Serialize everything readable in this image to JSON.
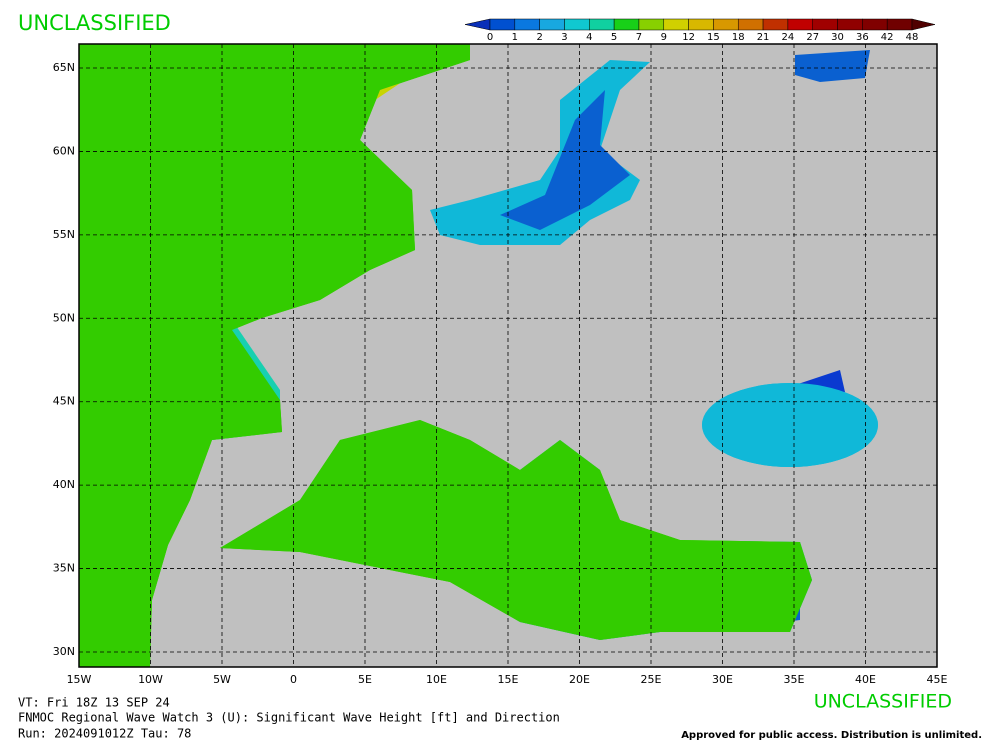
{
  "header": {
    "classification": "UNCLASSIFIED"
  },
  "colorbar": {
    "ticks": [
      0,
      1,
      2,
      3,
      4,
      5,
      7,
      9,
      12,
      15,
      18,
      21,
      24,
      27,
      30,
      36,
      42,
      48
    ],
    "colors": [
      "#0a2fb8",
      "#0050d0",
      "#0a78e0",
      "#18a8e0",
      "#10c8d0",
      "#10d0a0",
      "#18d018",
      "#88d000",
      "#d0d000",
      "#d8b800",
      "#d89800",
      "#d07000",
      "#c03000",
      "#c00000",
      "#a00000",
      "#900000",
      "#800000",
      "#700000",
      "#500000"
    ]
  },
  "map": {
    "lat_labels": [
      "65N",
      "60N",
      "55N",
      "50N",
      "45N",
      "40N",
      "35N",
      "30N"
    ],
    "lon_labels": [
      "15W",
      "10W",
      "5W",
      "0",
      "5E",
      "10E",
      "15E",
      "20E",
      "25E",
      "30E",
      "35E",
      "40E",
      "45E"
    ]
  },
  "footer": {
    "valid_time": "VT: Fri 18Z 13 SEP 24",
    "product": "FNMOC Regional Wave Watch 3 (U): Significant Wave Height [ft] and Direction",
    "run": "Run: 2024091012Z Tau: 78",
    "classification": "UNCLASSIFIED",
    "release": "Approved for public access. Distribution is unlimited."
  }
}
